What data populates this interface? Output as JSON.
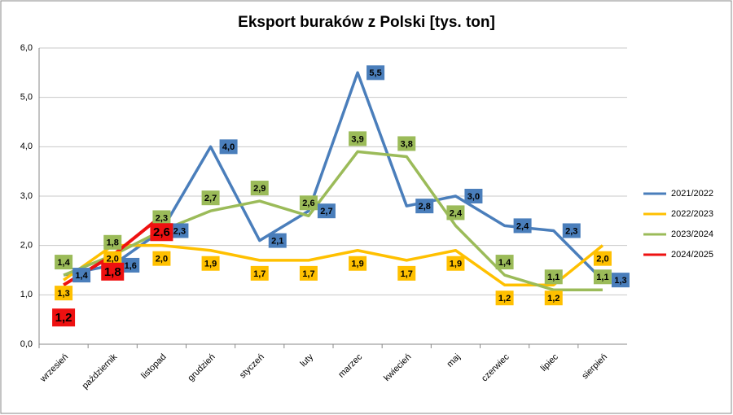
{
  "chart_data": {
    "type": "line",
    "title": "Eksport buraków z Polski [tys. ton]",
    "categories": [
      "wrzesień",
      "październik",
      "listopad",
      "grudzień",
      "styczeń",
      "luty",
      "marzec",
      "kwiecień",
      "maj",
      "czerwiec",
      "lipiec",
      "sierpień"
    ],
    "series": [
      {
        "name": "2021/2022",
        "color": "#4a7ebb",
        "values": [
          1.4,
          1.6,
          2.3,
          4.0,
          2.1,
          2.7,
          5.5,
          2.8,
          3.0,
          2.4,
          2.3,
          1.3
        ],
        "value_labels": [
          "1,4",
          "1,6",
          "2,3",
          "4,0",
          "2,1",
          "2,7",
          "5,5",
          "2,8",
          "3,0",
          "2,4",
          "2,3",
          "1,3"
        ]
      },
      {
        "name": "2022/2023",
        "color": "#ffc000",
        "values": [
          1.3,
          2.0,
          2.0,
          1.9,
          1.7,
          1.7,
          1.9,
          1.7,
          1.9,
          1.2,
          1.2,
          2.0
        ],
        "value_labels": [
          "1,3",
          "2,0",
          "2,0",
          "1,9",
          "1,7",
          "1,7",
          "1,9",
          "1,7",
          "1,9",
          "1,2",
          "1,2",
          "2,0"
        ]
      },
      {
        "name": "2023/2024",
        "color": "#9bbb59",
        "values": [
          1.4,
          1.8,
          2.3,
          2.7,
          2.9,
          2.6,
          3.9,
          3.8,
          2.4,
          1.4,
          1.1,
          1.1
        ],
        "value_labels": [
          "1,4",
          "1,8",
          "2,3",
          "2,7",
          "2,9",
          "2,6",
          "3,9",
          "3,8",
          "2,4",
          "1,4",
          "1,1",
          "1,1"
        ]
      },
      {
        "name": "2024/2025",
        "color": "#ee1111",
        "values": [
          1.2,
          1.8,
          2.6,
          null,
          null,
          null,
          null,
          null,
          null,
          null,
          null,
          null
        ],
        "value_labels": [
          "1,2",
          "1,8",
          "2,6",
          null,
          null,
          null,
          null,
          null,
          null,
          null,
          null,
          null
        ]
      }
    ],
    "ylim": [
      0,
      6
    ],
    "yticks": [
      {
        "value": 0,
        "label": "0,0"
      },
      {
        "value": 1,
        "label": "1,0"
      },
      {
        "value": 2,
        "label": "2,0"
      },
      {
        "value": 3,
        "label": "3,0"
      },
      {
        "value": 4,
        "label": "4,0"
      },
      {
        "value": 5,
        "label": "5,0"
      },
      {
        "value": 6,
        "label": "6,0"
      }
    ],
    "grid": true,
    "legend": "right"
  }
}
